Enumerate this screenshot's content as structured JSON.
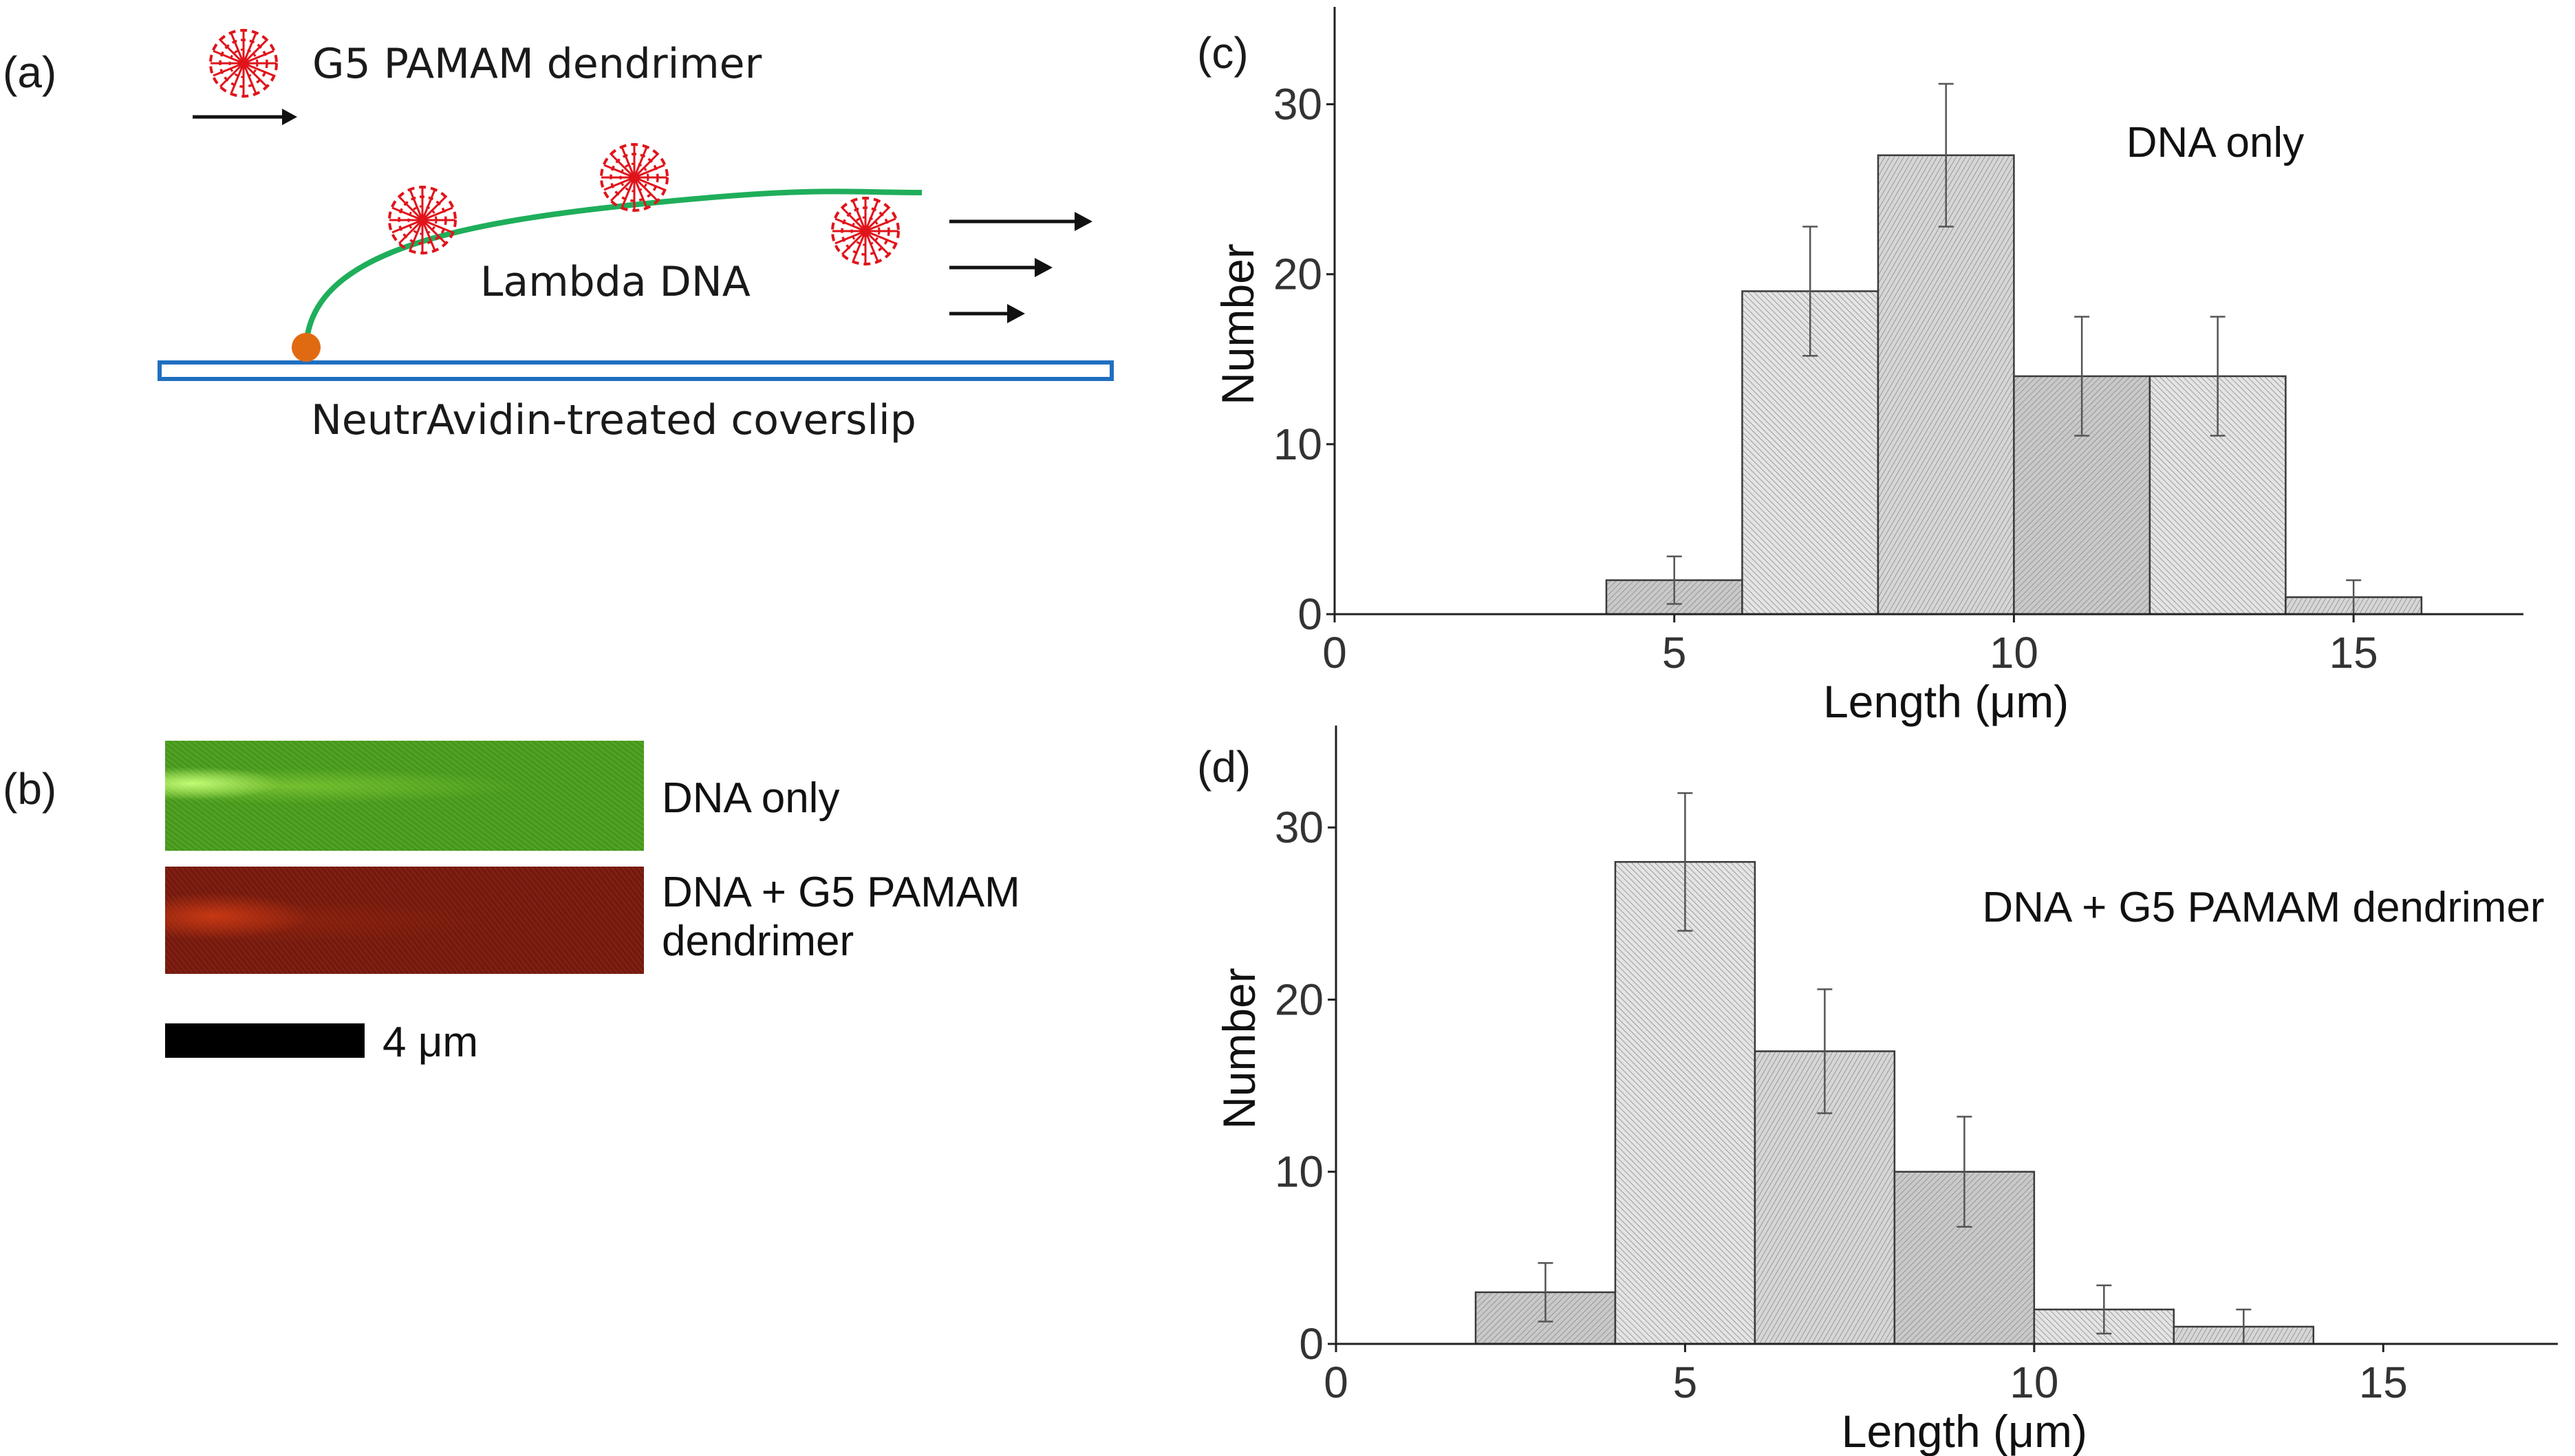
{
  "figure": {
    "panels": {
      "a": "(a)",
      "b": "(b)",
      "c": "(c)",
      "d": "(d)"
    },
    "schematic": {
      "dendrimer_label": "G5 PAMAM dendrimer",
      "dna_label": "Lambda DNA",
      "surface_label": "NeutrAvidin-treated coverslip",
      "colors": {
        "dna": "#1fae5b",
        "anchor": "#e06a12",
        "surface": "#1f6fc0",
        "dendrimer": "#e0141b"
      }
    },
    "images": {
      "green_label": "DNA only",
      "red_label": "DNA + G5 PAMAM dendrimer",
      "scale_label": "4 μm",
      "colors": {
        "green": "#4a9e1c",
        "red": "#7a1a0c"
      }
    }
  },
  "chart_data": [
    {
      "type": "bar",
      "panel": "(c)",
      "annotation": "DNA only",
      "xlabel": "Length (μm)",
      "ylabel": "Number",
      "xlim": [
        0,
        17.5
      ],
      "ylim": [
        0,
        35
      ],
      "xticks": [
        0,
        5,
        10,
        15
      ],
      "yticks": [
        0,
        10,
        20,
        30
      ],
      "bin_width": 2,
      "bins": [
        {
          "x0": 4,
          "x1": 6,
          "value": 2,
          "err": 1.4
        },
        {
          "x0": 6,
          "x1": 8,
          "value": 19,
          "err": 3.8
        },
        {
          "x0": 8,
          "x1": 10,
          "value": 27,
          "err": 4.2
        },
        {
          "x0": 10,
          "x1": 12,
          "value": 14,
          "err": 3.5
        },
        {
          "x0": 12,
          "x1": 14,
          "value": 14,
          "err": 3.5
        },
        {
          "x0": 14,
          "x1": 16,
          "value": 1,
          "err": 1.0
        }
      ]
    },
    {
      "type": "bar",
      "panel": "(d)",
      "annotation": "DNA + G5 PAMAM dendrimer",
      "xlabel": "Length (μm)",
      "ylabel": "Number",
      "xlim": [
        0,
        17.5
      ],
      "ylim": [
        0,
        35
      ],
      "xticks": [
        0,
        5,
        10,
        15
      ],
      "yticks": [
        0,
        10,
        20,
        30
      ],
      "bin_width": 2,
      "bins": [
        {
          "x0": 2,
          "x1": 4,
          "value": 3,
          "err": 1.7
        },
        {
          "x0": 4,
          "x1": 6,
          "value": 28,
          "err": 4.0
        },
        {
          "x0": 6,
          "x1": 8,
          "value": 17,
          "err": 3.6
        },
        {
          "x0": 8,
          "x1": 10,
          "value": 10,
          "err": 3.2
        },
        {
          "x0": 10,
          "x1": 12,
          "value": 2,
          "err": 1.4
        },
        {
          "x0": 12,
          "x1": 14,
          "value": 1,
          "err": 1.0
        }
      ]
    }
  ]
}
